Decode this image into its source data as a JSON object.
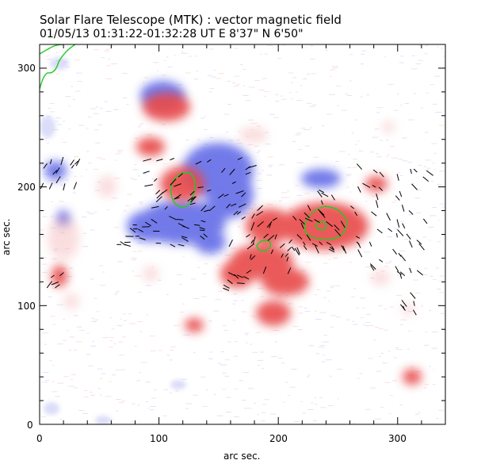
{
  "header": {
    "title": "Solar Flare Telescope (MTK) : vector magnetic field",
    "subtitle": "01/05/13  01:31:22-01:32:28 UT    E 8'37\"   N 6'50\""
  },
  "axes": {
    "xlabel": "arc sec.",
    "ylabel": "arc sec.",
    "x_ticks": [
      "0",
      "100",
      "200",
      "300"
    ],
    "y_ticks": [
      "0",
      "100",
      "200",
      "300"
    ],
    "x_range": [
      0,
      340
    ],
    "y_range": [
      0,
      320
    ]
  },
  "colors": {
    "positive_polarity": "#e8484a",
    "negative_polarity": "#4a5ae8",
    "contour": "#22cc22",
    "vector": "#000000"
  }
}
